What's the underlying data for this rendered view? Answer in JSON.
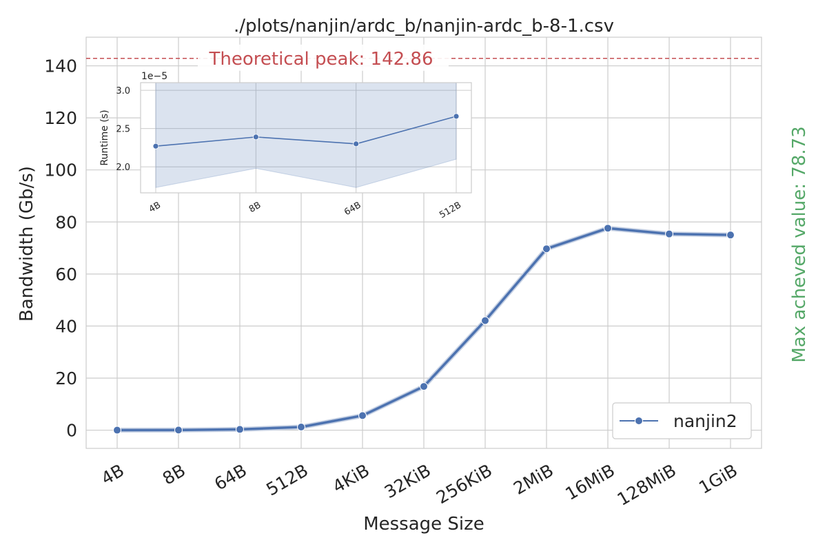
{
  "chart_data": [
    {
      "type": "line",
      "title": "./plots/nanjin/ardc_b/nanjin-ardc_b-8-1.csv",
      "xlabel": "Message Size",
      "ylabel": "Bandwidth (Gb/s)",
      "categories": [
        "4B",
        "8B",
        "64B",
        "512B",
        "4KiB",
        "32KiB",
        "256KiB",
        "2MiB",
        "16MiB",
        "128MiB",
        "1GiB"
      ],
      "yticks": [
        "0",
        "20",
        "40",
        "60",
        "80",
        "100",
        "120",
        "140"
      ],
      "ylim": [
        -7,
        151
      ],
      "grid": true,
      "legend_position": "lower-right",
      "series": [
        {
          "name": "nanjin2",
          "color": "#4c72b0",
          "values": [
            0.0,
            0.05,
            0.3,
            1.2,
            5.6,
            16.8,
            42.1,
            69.7,
            77.6,
            75.4,
            75.0
          ]
        }
      ],
      "peak_line": {
        "value": 142.86,
        "label": "Theoretical peak: 142.86",
        "color": "#c44e52",
        "style": "dashed"
      },
      "side_annotation": {
        "label": "Max acheved value: 78.73",
        "color": "#55a868"
      }
    },
    {
      "type": "line",
      "inset": true,
      "xlabel": "",
      "ylabel": "Runtime (s)",
      "scale_label": "1e−5",
      "categories": [
        "4B",
        "8B",
        "64B",
        "512B"
      ],
      "yticks": [
        "2.0",
        "2.5",
        "3.0"
      ],
      "ylim": [
        1.66,
        3.1
      ],
      "grid": true,
      "series": [
        {
          "name": "",
          "color": "#4c72b0",
          "values": [
            2.27,
            2.39,
            2.3,
            2.66
          ],
          "ci_low": [
            1.73,
            1.98,
            1.73,
            2.1
          ],
          "ci_high": [
            3.13,
            3.13,
            3.17,
            3.34
          ]
        }
      ]
    }
  ]
}
